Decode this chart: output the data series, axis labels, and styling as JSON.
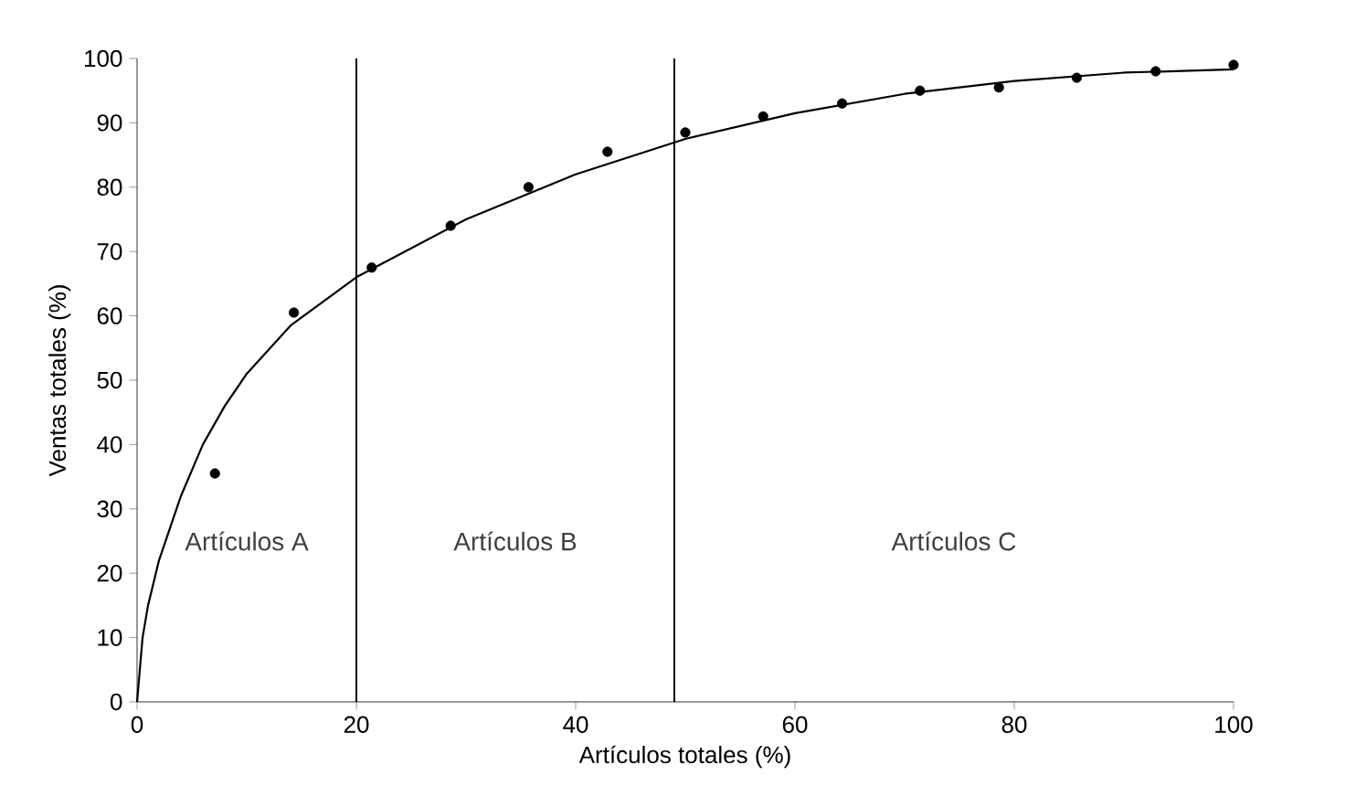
{
  "chart_data": {
    "type": "scatter",
    "xlabel": "Artículos totales (%)",
    "ylabel": "Ventas totales (%)",
    "xlim": [
      0,
      100
    ],
    "ylim": [
      0,
      100
    ],
    "xticks": [
      0,
      20,
      40,
      60,
      80,
      100
    ],
    "yticks": [
      0,
      10,
      20,
      30,
      40,
      50,
      60,
      70,
      80,
      90,
      100
    ],
    "grid": false,
    "series": [
      {
        "color": "#000000",
        "marker": "circle",
        "x": [
          7.1,
          14.3,
          21.4,
          28.6,
          35.7,
          42.9,
          50,
          57.1,
          64.3,
          71.4,
          78.6,
          85.7,
          92.9,
          100
        ],
        "values": [
          35.5,
          60.5,
          67.5,
          74,
          80,
          85.5,
          88.5,
          91,
          93,
          95,
          95.5,
          97,
          98,
          99
        ]
      },
      {
        "type": "line",
        "color": "#000000",
        "marker": "none",
        "line_style": "solid",
        "x": [
          0,
          0.5,
          1,
          2,
          4,
          6,
          8,
          10,
          14,
          20,
          30,
          40,
          50,
          60,
          70,
          80,
          90,
          100
        ],
        "values": [
          0,
          10,
          15,
          22,
          32,
          40,
          46,
          51,
          58.5,
          66,
          75,
          82,
          87.5,
          91.5,
          94.5,
          96.5,
          97.8,
          98.3
        ]
      }
    ],
    "ref_lines": [
      {
        "axis": "x",
        "value": 20,
        "color": "#000000"
      },
      {
        "axis": "x",
        "value": 49,
        "color": "#000000"
      }
    ],
    "annotations": [
      "Artículos A",
      "Artículos B",
      "Artículos C"
    ]
  }
}
